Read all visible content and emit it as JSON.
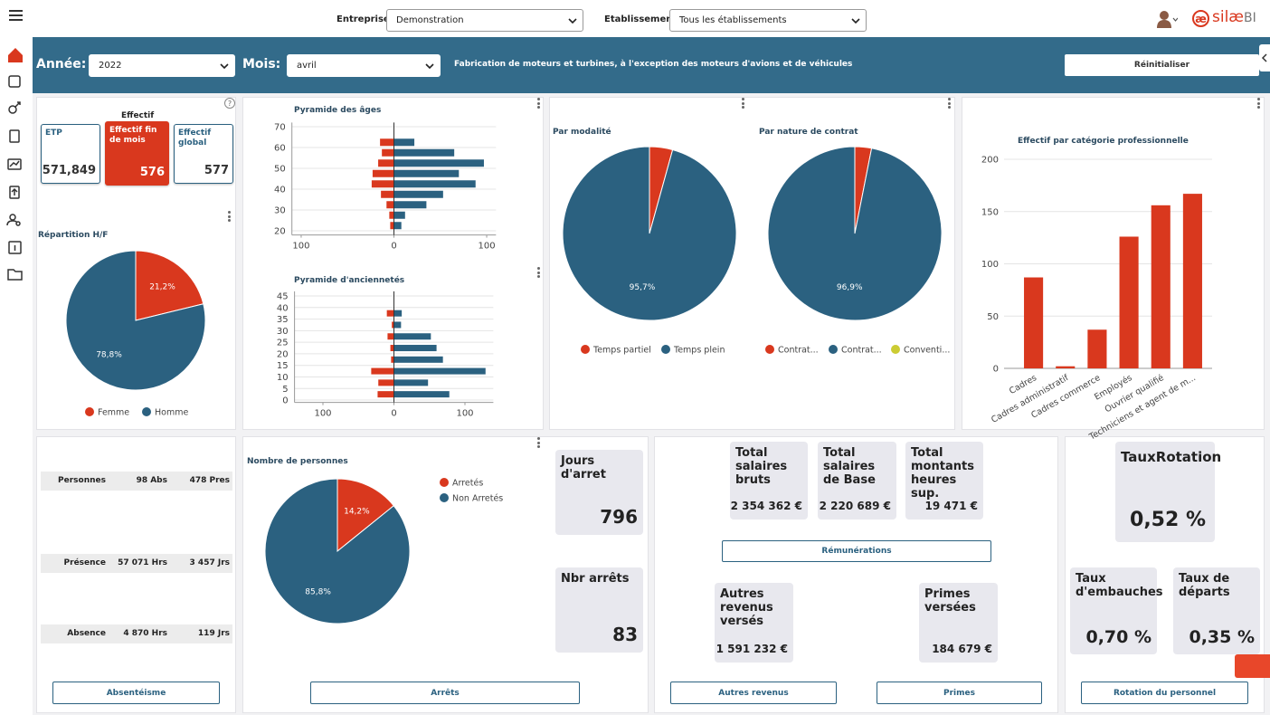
{
  "header": {
    "entreprise_label": "Entreprise:",
    "entreprise": "Demonstration",
    "etablissement_label": "Etablissement:",
    "etablissement": "Tous les établissements",
    "logo_mark": "æ",
    "brand": "silæ",
    "brand_suffix": "BI"
  },
  "filters": {
    "annee_label": "Année:",
    "annee": "2022",
    "mois_label": "Mois:",
    "mois": "avril",
    "activite": "Fabrication de moteurs et turbines, à l'exception des moteurs d'avions et de véhicules",
    "reset": "Réinitialiser"
  },
  "effectif": {
    "help": "?",
    "title": "Effectif",
    "cards": [
      {
        "label": "ETP",
        "value": "571,849"
      },
      {
        "label": "Effectif fin de mois",
        "value": 576
      },
      {
        "label": "Effectif global",
        "value": 577
      }
    ]
  },
  "chart_data": [
    {
      "type": "pie",
      "title": "Répartition H/F",
      "categories": [
        "Femme",
        "Homme"
      ],
      "values": [
        21.2,
        78.8
      ],
      "value_labels": [
        "21,2%",
        "78,8%"
      ],
      "colors": [
        "#d9381e",
        "#2b6180"
      ]
    },
    {
      "type": "hbar",
      "title": "Pyramide des âges",
      "y": [
        62.5,
        57.5,
        52.5,
        47.5,
        42.5,
        37.5,
        32.5,
        27.5,
        22.5
      ],
      "series": [
        {
          "color": "#d9381e",
          "values": [
            -15,
            -13,
            -17,
            -23,
            -24,
            -14,
            -8,
            -5,
            -4
          ]
        },
        {
          "color": "#2b6180",
          "values": [
            22,
            65,
            97,
            70,
            88,
            53,
            35,
            12,
            8
          ]
        }
      ],
      "xlim": [
        -110,
        110
      ],
      "xticks": [
        {
          "value": -100,
          "label": "100"
        },
        0,
        100
      ],
      "ylim": [
        18,
        72
      ],
      "yticks": [
        20,
        30,
        40,
        50,
        60,
        70
      ],
      "grid": true
    },
    {
      "type": "hbar",
      "title": "Pyramide d'anciennetés",
      "y": [
        37.5,
        32.5,
        27.5,
        22.5,
        17.5,
        12.5,
        7.5,
        2.5
      ],
      "series": [
        {
          "color": "#d9381e",
          "values": [
            -10,
            -3,
            -9,
            -5,
            -4,
            -32,
            -22,
            -23
          ]
        },
        {
          "color": "#2b6180",
          "values": [
            11,
            10,
            52,
            60,
            69,
            129,
            48,
            78
          ]
        }
      ],
      "xlim": [
        -140,
        140
      ],
      "xticks": [
        {
          "value": -100,
          "label": "100"
        },
        0,
        100
      ],
      "ylim": [
        -1,
        47
      ],
      "yticks": [
        0,
        5,
        10,
        15,
        20,
        25,
        30,
        35,
        40,
        45
      ],
      "grid": true
    },
    {
      "type": "pie",
      "title": "Par modalité",
      "categories": [
        "Temps partiel",
        "Temps plein"
      ],
      "values": [
        4.3,
        95.7
      ],
      "value_labels": [
        null,
        "95,7%"
      ],
      "colors": [
        "#d9381e",
        "#2b6180"
      ]
    },
    {
      "type": "pie",
      "title": "Par nature de contrat",
      "categories": [
        "Contrat...",
        "Contrat...",
        "Conventi..."
      ],
      "values": [
        3.1,
        96.9,
        0
      ],
      "value_labels": [
        null,
        "96,9%",
        null
      ],
      "colors": [
        "#d9381e",
        "#2b6180",
        "#cccc33"
      ]
    },
    {
      "type": "bar",
      "title": "Effectif par catégorie professionnelle",
      "categories": [
        "Cadres",
        "Cadres administratif",
        "Cadres commerce",
        "Employés",
        "Ouvrier qualifié",
        "Techniciens et agent de m..."
      ],
      "values": [
        87,
        2,
        37,
        126,
        156,
        167
      ],
      "color": "#d9381e",
      "ylim": [
        0,
        200
      ],
      "yticks": [
        0,
        50,
        100,
        150,
        200
      ],
      "grid": true
    },
    {
      "type": "pie",
      "title": "Nombre de personnes",
      "categories": [
        "Arretés",
        "Non Arretés"
      ],
      "values": [
        14.2,
        85.8
      ],
      "value_labels": [
        "14,2%",
        "85,8%"
      ],
      "colors": [
        "#d9381e",
        "#2b6180"
      ]
    }
  ],
  "absences": {
    "rows": [
      [
        "Personnes",
        "98 Abs",
        "478 Pres"
      ],
      [
        "Présence",
        "57 071 Hrs",
        "3 457 Jrs"
      ],
      [
        "Absence",
        "4 870 Hrs",
        "119 Jrs"
      ]
    ],
    "button": "Absentéisme"
  },
  "arrets": {
    "cards": [
      {
        "label": "Jours d'arret",
        "value": 796
      },
      {
        "label": "Nbr arrêts",
        "value": 83
      }
    ],
    "button": "Arrêts"
  },
  "remuneration": {
    "cards": [
      {
        "label": "Total salaires bruts",
        "value": "2 354 362 €"
      },
      {
        "label": "Total salaires de Base",
        "value": "2 220 689 €"
      },
      {
        "label": "Total montants heures sup.",
        "value": "19 471 €"
      }
    ],
    "button": "Rémunérations",
    "other_cards": [
      {
        "label": "Autres revenus versés",
        "value": "1 591 232 €"
      },
      {
        "label": "Primes versées",
        "value": "184 679 €"
      }
    ],
    "buttons": [
      "Autres revenus",
      "Primes"
    ]
  },
  "rotation": {
    "cards": [
      {
        "label": "TauxRotation",
        "value": "0,52 %"
      },
      {
        "label": "Taux d'embauches",
        "value": "0,70 %"
      },
      {
        "label": "Taux de départs",
        "value": "0,35 %"
      }
    ],
    "button": "Rotation du personnel"
  }
}
